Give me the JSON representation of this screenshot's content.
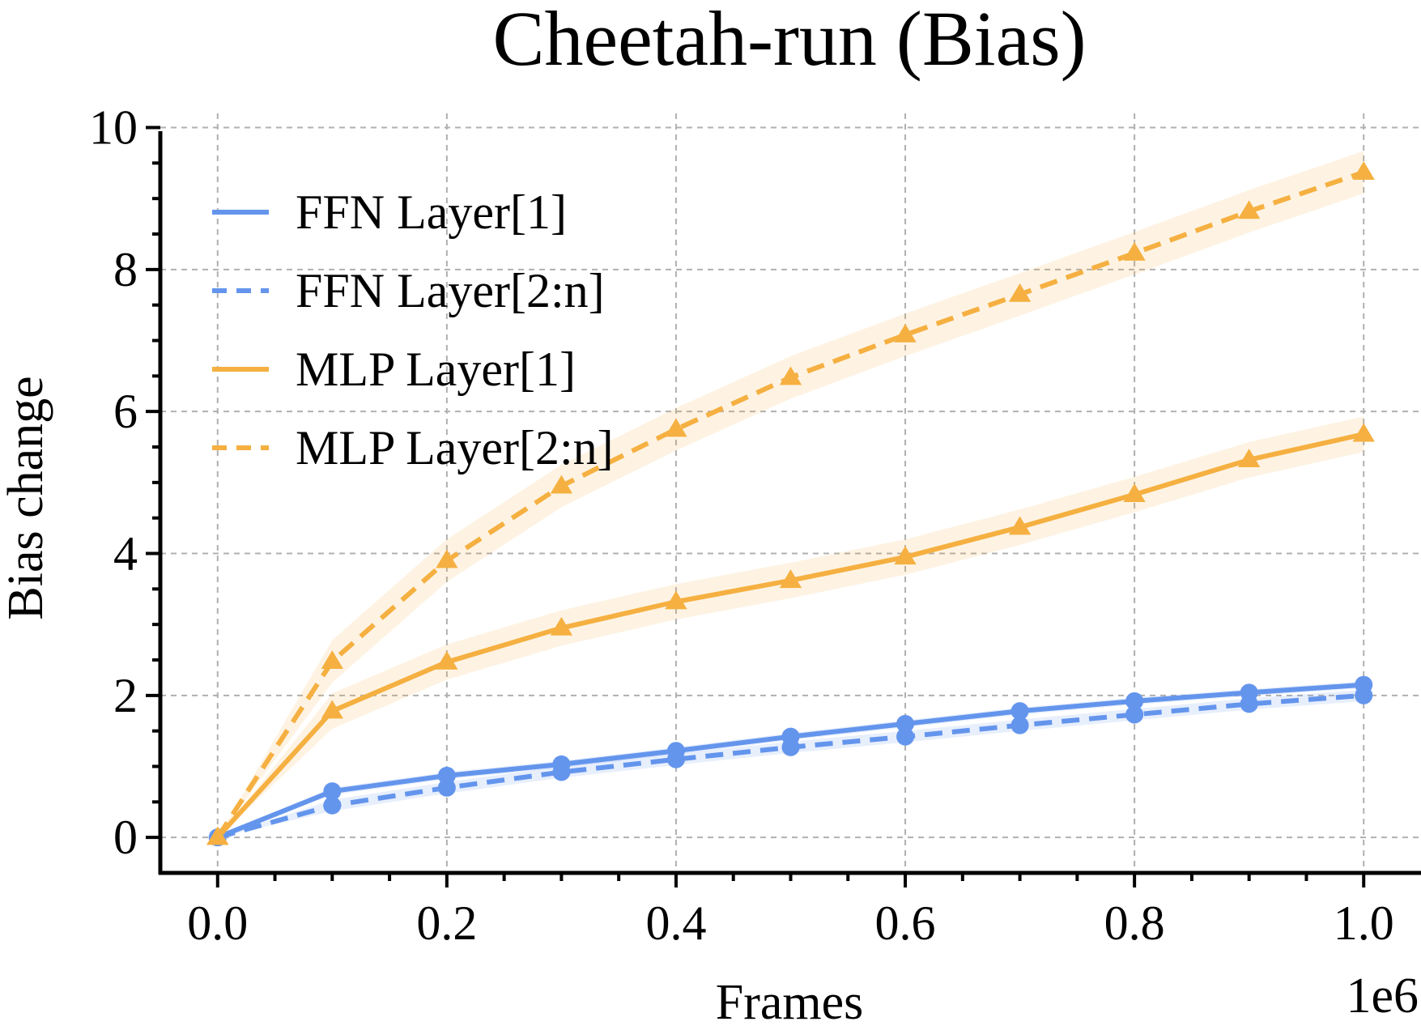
{
  "chart_data": {
    "type": "line",
    "title": "Cheetah-run (Bias)",
    "xlabel": "Frames",
    "ylabel": "Bias change",
    "x_offset_label": "1e6",
    "xlim": [
      -0.05,
      1.05
    ],
    "ylim": [
      -0.5,
      10.2
    ],
    "xticks": [
      "0.0",
      "0.2",
      "0.4",
      "0.6",
      "0.8",
      "1.0"
    ],
    "yticks": [
      "0",
      "2",
      "4",
      "6",
      "8",
      "10"
    ],
    "grid": true,
    "legend_position": "upper-left",
    "x": [
      0.0,
      0.1,
      0.2,
      0.3,
      0.4,
      0.5,
      0.6,
      0.7,
      0.8,
      0.9,
      1.0
    ],
    "series": [
      {
        "name": "FFN Layer[1]",
        "color": "#6495ED",
        "linestyle": "solid",
        "marker": "circle",
        "values": [
          0.0,
          0.65,
          0.87,
          1.03,
          1.22,
          1.42,
          1.6,
          1.78,
          1.92,
          2.04,
          2.15
        ],
        "band": 0.05
      },
      {
        "name": "FFN Layer[2:n]",
        "color": "#6495ED",
        "linestyle": "dashed",
        "marker": "circle",
        "values": [
          0.0,
          0.45,
          0.7,
          0.92,
          1.1,
          1.27,
          1.42,
          1.58,
          1.73,
          1.88,
          2.0
        ],
        "band": 0.08
      },
      {
        "name": "MLP Layer[1]",
        "color": "#F5B041",
        "linestyle": "solid",
        "marker": "triangle",
        "values": [
          0.0,
          1.78,
          2.47,
          2.95,
          3.32,
          3.62,
          3.95,
          4.37,
          4.83,
          5.32,
          5.68
        ],
        "band": 0.25
      },
      {
        "name": "MLP Layer[2:n]",
        "color": "#F5B041",
        "linestyle": "dashed",
        "marker": "triangle",
        "values": [
          0.0,
          2.48,
          3.9,
          4.95,
          5.75,
          6.48,
          7.08,
          7.65,
          8.23,
          8.82,
          9.37
        ],
        "band": 0.3
      }
    ]
  }
}
